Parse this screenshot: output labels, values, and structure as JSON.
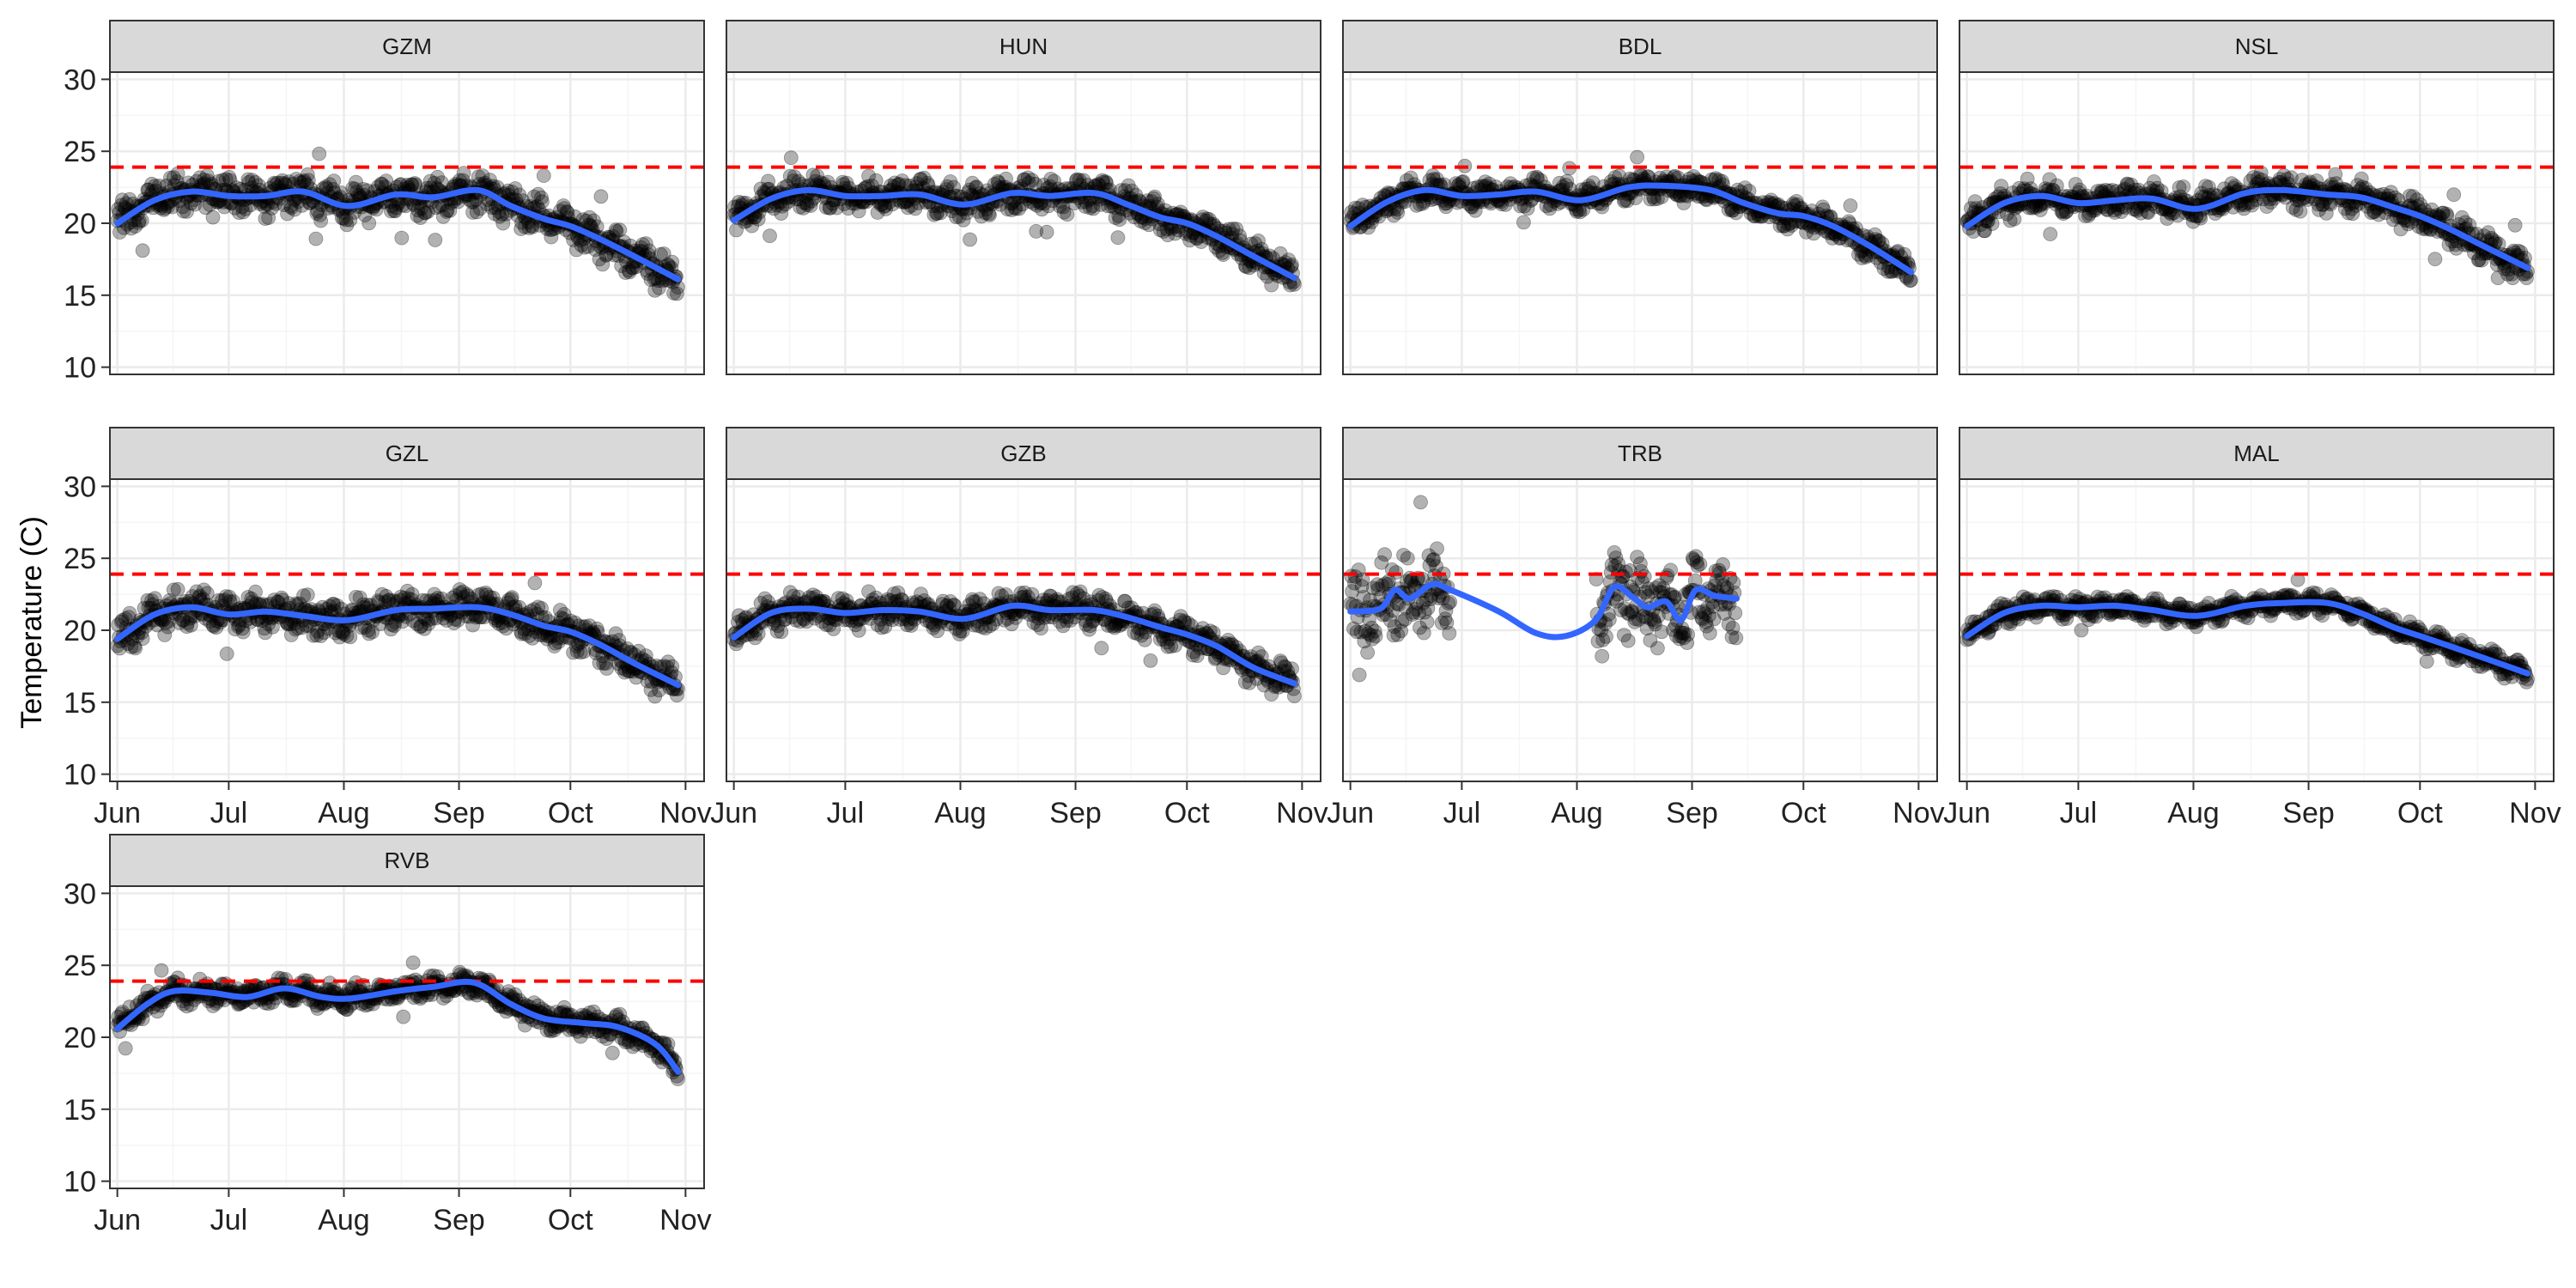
{
  "chart_data": {
    "type": "scatter",
    "layout": "faceted",
    "ylabel": "Temperature (C)",
    "xlabel": "",
    "ylim": [
      9.5,
      30.5
    ],
    "y_ticks": [
      10,
      15,
      20,
      25,
      30
    ],
    "x_ticks": [
      "Jun",
      "Jul",
      "Aug",
      "Sep",
      "Oct",
      "Nov"
    ],
    "xlim_days": [
      -2,
      158
    ],
    "reference_line": {
      "y": 23.9,
      "style": "dashed",
      "color": "#ff0000"
    },
    "colors": {
      "points": "#000000",
      "smooth": "#3366ff",
      "strip_fill": "#d9d9d9",
      "panel_border": "#333333",
      "grid_major": "#ebebeb",
      "grid_minor": "#f5f5f5"
    },
    "grid": true,
    "facets": [
      {
        "label": "GZM",
        "date_range": [
          "Jun 1",
          "Oct 30"
        ],
        "spread": 1.3,
        "min": 14.8,
        "max": 25.6,
        "smooth": [
          [
            0,
            20.0
          ],
          [
            10,
            21.6
          ],
          [
            20,
            22.2
          ],
          [
            30,
            21.9
          ],
          [
            40,
            21.9
          ],
          [
            50,
            22.2
          ],
          [
            62,
            21.2
          ],
          [
            75,
            22.0
          ],
          [
            85,
            21.8
          ],
          [
            97,
            22.3
          ],
          [
            106,
            21.2
          ],
          [
            115,
            20.3
          ],
          [
            122,
            19.8
          ],
          [
            130,
            18.9
          ],
          [
            140,
            17.6
          ],
          [
            151,
            16.1
          ]
        ]
      },
      {
        "label": "HUN",
        "date_range": [
          "Jun 1",
          "Oct 30"
        ],
        "spread": 1.1,
        "min": 15.7,
        "max": 25.4,
        "smooth": [
          [
            0,
            20.2
          ],
          [
            10,
            21.7
          ],
          [
            20,
            22.3
          ],
          [
            30,
            21.9
          ],
          [
            40,
            21.9
          ],
          [
            50,
            22.0
          ],
          [
            62,
            21.3
          ],
          [
            75,
            22.1
          ],
          [
            85,
            21.9
          ],
          [
            97,
            22.1
          ],
          [
            106,
            21.3
          ],
          [
            115,
            20.4
          ],
          [
            122,
            20.0
          ],
          [
            130,
            19.1
          ],
          [
            140,
            17.7
          ],
          [
            151,
            16.2
          ]
        ]
      },
      {
        "label": "BDL",
        "date_range": [
          "Jun 1",
          "Oct 30"
        ],
        "spread": 0.9,
        "min": 16.0,
        "max": 24.8,
        "smooth": [
          [
            0,
            19.8
          ],
          [
            10,
            21.5
          ],
          [
            20,
            22.3
          ],
          [
            30,
            21.9
          ],
          [
            40,
            22.0
          ],
          [
            50,
            22.2
          ],
          [
            62,
            21.6
          ],
          [
            75,
            22.5
          ],
          [
            85,
            22.6
          ],
          [
            97,
            22.3
          ],
          [
            106,
            21.4
          ],
          [
            115,
            20.7
          ],
          [
            122,
            20.5
          ],
          [
            130,
            19.8
          ],
          [
            140,
            18.4
          ],
          [
            151,
            16.6
          ]
        ]
      },
      {
        "label": "NSL",
        "date_range": [
          "Jun 1",
          "Oct 30"
        ],
        "spread": 1.1,
        "min": 16.2,
        "max": 25.4,
        "smooth": [
          [
            0,
            19.8
          ],
          [
            10,
            21.4
          ],
          [
            20,
            21.9
          ],
          [
            30,
            21.4
          ],
          [
            40,
            21.6
          ],
          [
            50,
            21.7
          ],
          [
            62,
            21.0
          ],
          [
            75,
            22.1
          ],
          [
            85,
            22.3
          ],
          [
            97,
            22.0
          ],
          [
            106,
            21.8
          ],
          [
            115,
            21.1
          ],
          [
            122,
            20.5
          ],
          [
            130,
            19.6
          ],
          [
            140,
            18.3
          ],
          [
            151,
            16.9
          ]
        ]
      },
      {
        "label": "GZL",
        "date_range": [
          "Jun 1",
          "Oct 30"
        ],
        "spread": 1.2,
        "min": 14.9,
        "max": 25.6,
        "smooth": [
          [
            0,
            19.4
          ],
          [
            10,
            21.1
          ],
          [
            20,
            21.6
          ],
          [
            30,
            21.1
          ],
          [
            40,
            21.3
          ],
          [
            50,
            21.0
          ],
          [
            62,
            20.7
          ],
          [
            75,
            21.4
          ],
          [
            85,
            21.5
          ],
          [
            97,
            21.6
          ],
          [
            106,
            21.1
          ],
          [
            115,
            20.3
          ],
          [
            122,
            19.9
          ],
          [
            130,
            19.0
          ],
          [
            140,
            17.6
          ],
          [
            151,
            16.2
          ]
        ]
      },
      {
        "label": "GZB",
        "date_range": [
          "Jun 1",
          "Oct 30"
        ],
        "spread": 1.1,
        "min": 15.3,
        "max": 25.4,
        "smooth": [
          [
            0,
            19.5
          ],
          [
            10,
            21.2
          ],
          [
            20,
            21.5
          ],
          [
            30,
            21.2
          ],
          [
            40,
            21.4
          ],
          [
            50,
            21.3
          ],
          [
            62,
            20.8
          ],
          [
            75,
            21.7
          ],
          [
            85,
            21.4
          ],
          [
            97,
            21.4
          ],
          [
            106,
            20.9
          ],
          [
            115,
            20.2
          ],
          [
            122,
            19.7
          ],
          [
            130,
            18.9
          ],
          [
            140,
            17.4
          ],
          [
            151,
            16.3
          ]
        ]
      },
      {
        "label": "TRB",
        "date_range": [
          "Jun 1",
          "Sep 13"
        ],
        "spread": 2.7,
        "min": 16.9,
        "max": 29.4,
        "gaps": [
          [
            27,
            66
          ]
        ],
        "smooth": [
          [
            0,
            21.3
          ],
          [
            8,
            21.5
          ],
          [
            12,
            22.8
          ],
          [
            16,
            22.2
          ],
          [
            22,
            23.2
          ],
          [
            27,
            22.8
          ],
          [
            40,
            21.3
          ],
          [
            50,
            19.8
          ],
          [
            58,
            19.6
          ],
          [
            66,
            20.7
          ],
          [
            71,
            23.0
          ],
          [
            76,
            22.3
          ],
          [
            80,
            21.6
          ],
          [
            85,
            22.0
          ],
          [
            89,
            20.7
          ],
          [
            93,
            22.8
          ],
          [
            98,
            22.4
          ],
          [
            104,
            22.2
          ]
        ]
      },
      {
        "label": "MAL",
        "date_range": [
          "Jun 1",
          "Oct 30"
        ],
        "spread": 0.7,
        "min": 16.4,
        "max": 24.1,
        "smooth": [
          [
            0,
            19.6
          ],
          [
            10,
            21.2
          ],
          [
            20,
            21.7
          ],
          [
            30,
            21.6
          ],
          [
            40,
            21.7
          ],
          [
            50,
            21.4
          ],
          [
            62,
            21.0
          ],
          [
            75,
            21.7
          ],
          [
            85,
            21.9
          ],
          [
            97,
            21.9
          ],
          [
            106,
            21.2
          ],
          [
            115,
            20.2
          ],
          [
            122,
            19.6
          ],
          [
            130,
            18.9
          ],
          [
            140,
            18.0
          ],
          [
            151,
            17.0
          ]
        ]
      },
      {
        "label": "RVB",
        "date_range": [
          "Jun 1",
          "Oct 30"
        ],
        "spread": 0.8,
        "min": 17.1,
        "max": 25.2,
        "smooth": [
          [
            0,
            20.6
          ],
          [
            8,
            22.3
          ],
          [
            15,
            23.2
          ],
          [
            25,
            23.1
          ],
          [
            35,
            22.8
          ],
          [
            45,
            23.4
          ],
          [
            55,
            22.8
          ],
          [
            63,
            22.7
          ],
          [
            75,
            23.2
          ],
          [
            85,
            23.5
          ],
          [
            96,
            23.8
          ],
          [
            106,
            22.3
          ],
          [
            115,
            21.3
          ],
          [
            125,
            21.0
          ],
          [
            135,
            20.7
          ],
          [
            145,
            19.5
          ],
          [
            151,
            17.6
          ]
        ]
      }
    ]
  }
}
